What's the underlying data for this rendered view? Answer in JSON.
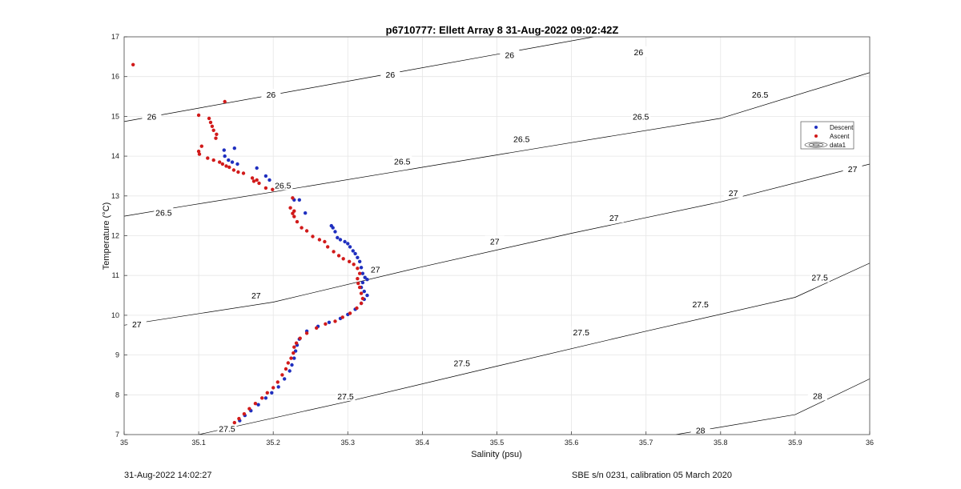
{
  "chart_data": {
    "type": "scatter",
    "title": "p6710777: Ellett Array 8 31-Aug-2022 09:02:42Z",
    "xlabel": "Salinity (psu)",
    "ylabel": "Temperature (°C)",
    "xlim": [
      35,
      36
    ],
    "ylim": [
      7,
      17
    ],
    "xticks": [
      "35",
      "35.1",
      "35.2",
      "35.3",
      "35.4",
      "35.5",
      "35.6",
      "35.7",
      "35.8",
      "35.9",
      "36"
    ],
    "yticks": [
      "7",
      "8",
      "9",
      "10",
      "11",
      "12",
      "13",
      "14",
      "15",
      "16",
      "17"
    ],
    "grid": true,
    "legend_position": "right",
    "legend": [
      "Descent",
      "Ascent",
      "data1"
    ],
    "colors": {
      "descent": "#1f2fbf",
      "ascent": "#d11a1a",
      "contour": "#000000"
    },
    "series": [
      {
        "name": "Descent",
        "color": "#1f2fbf",
        "points": [
          [
            35.134,
            14.15
          ],
          [
            35.148,
            14.2
          ],
          [
            35.135,
            14.0
          ],
          [
            35.14,
            13.9
          ],
          [
            35.145,
            13.85
          ],
          [
            35.152,
            13.8
          ],
          [
            35.178,
            13.7
          ],
          [
            35.19,
            13.5
          ],
          [
            35.195,
            13.4
          ],
          [
            35.228,
            12.9
          ],
          [
            35.235,
            12.9
          ],
          [
            35.243,
            12.57
          ],
          [
            35.278,
            12.25
          ],
          [
            35.28,
            12.2
          ],
          [
            35.283,
            12.1
          ],
          [
            35.286,
            11.95
          ],
          [
            35.29,
            11.9
          ],
          [
            35.296,
            11.85
          ],
          [
            35.3,
            11.8
          ],
          [
            35.303,
            11.72
          ],
          [
            35.307,
            11.62
          ],
          [
            35.31,
            11.55
          ],
          [
            35.313,
            11.45
          ],
          [
            35.316,
            11.35
          ],
          [
            35.318,
            11.2
          ],
          [
            35.32,
            11.05
          ],
          [
            35.323,
            10.95
          ],
          [
            35.326,
            10.9
          ],
          [
            35.32,
            10.82
          ],
          [
            35.318,
            10.7
          ],
          [
            35.322,
            10.6
          ],
          [
            35.326,
            10.5
          ],
          [
            35.322,
            10.4
          ],
          [
            35.318,
            10.3
          ],
          [
            35.31,
            10.15
          ],
          [
            35.3,
            10.02
          ],
          [
            35.29,
            9.92
          ],
          [
            35.275,
            9.82
          ],
          [
            35.26,
            9.72
          ],
          [
            35.245,
            9.6
          ],
          [
            35.235,
            9.4
          ],
          [
            35.232,
            9.25
          ],
          [
            35.23,
            9.1
          ],
          [
            35.228,
            8.92
          ],
          [
            35.225,
            8.75
          ],
          [
            35.222,
            8.6
          ],
          [
            35.215,
            8.4
          ],
          [
            35.207,
            8.2
          ],
          [
            35.198,
            8.05
          ],
          [
            35.19,
            7.92
          ],
          [
            35.18,
            7.75
          ],
          [
            35.17,
            7.6
          ],
          [
            35.162,
            7.48
          ],
          [
            35.155,
            7.35
          ]
        ]
      },
      {
        "name": "Ascent",
        "color": "#d11a1a",
        "points": [
          [
            35.012,
            16.3
          ],
          [
            35.135,
            15.37
          ],
          [
            35.1,
            15.03
          ],
          [
            35.114,
            14.95
          ],
          [
            35.116,
            14.85
          ],
          [
            35.118,
            14.75
          ],
          [
            35.12,
            14.65
          ],
          [
            35.124,
            14.55
          ],
          [
            35.123,
            14.45
          ],
          [
            35.104,
            14.25
          ],
          [
            35.1,
            14.12
          ],
          [
            35.101,
            14.05
          ],
          [
            35.112,
            13.95
          ],
          [
            35.12,
            13.9
          ],
          [
            35.128,
            13.85
          ],
          [
            35.132,
            13.8
          ],
          [
            35.137,
            13.75
          ],
          [
            35.141,
            13.72
          ],
          [
            35.147,
            13.65
          ],
          [
            35.153,
            13.6
          ],
          [
            35.16,
            13.57
          ],
          [
            35.172,
            13.45
          ],
          [
            35.178,
            13.4
          ],
          [
            35.174,
            13.37
          ],
          [
            35.181,
            13.32
          ],
          [
            35.19,
            13.2
          ],
          [
            35.199,
            13.16
          ],
          [
            35.226,
            12.95
          ],
          [
            35.223,
            12.7
          ],
          [
            35.228,
            12.62
          ],
          [
            35.226,
            12.56
          ],
          [
            35.228,
            12.48
          ],
          [
            35.232,
            12.35
          ],
          [
            35.238,
            12.2
          ],
          [
            35.245,
            12.12
          ],
          [
            35.253,
            11.98
          ],
          [
            35.262,
            11.9
          ],
          [
            35.269,
            11.85
          ],
          [
            35.273,
            11.72
          ],
          [
            35.281,
            11.6
          ],
          [
            35.288,
            11.5
          ],
          [
            35.294,
            11.42
          ],
          [
            35.302,
            11.35
          ],
          [
            35.308,
            11.28
          ],
          [
            35.313,
            11.18
          ],
          [
            35.316,
            11.05
          ],
          [
            35.313,
            10.92
          ],
          [
            35.314,
            10.8
          ],
          [
            35.316,
            10.7
          ],
          [
            35.318,
            10.55
          ],
          [
            35.32,
            10.42
          ],
          [
            35.318,
            10.3
          ],
          [
            35.312,
            10.18
          ],
          [
            35.303,
            10.05
          ],
          [
            35.293,
            9.95
          ],
          [
            35.283,
            9.85
          ],
          [
            35.27,
            9.78
          ],
          [
            35.258,
            9.68
          ],
          [
            35.245,
            9.55
          ],
          [
            35.236,
            9.42
          ],
          [
            35.231,
            9.3
          ],
          [
            35.228,
            9.2
          ],
          [
            35.227,
            9.05
          ],
          [
            35.224,
            8.92
          ],
          [
            35.22,
            8.8
          ],
          [
            35.217,
            8.65
          ],
          [
            35.212,
            8.5
          ],
          [
            35.206,
            8.32
          ],
          [
            35.2,
            8.18
          ],
          [
            35.192,
            8.05
          ],
          [
            35.185,
            7.92
          ],
          [
            35.176,
            7.78
          ],
          [
            35.168,
            7.65
          ],
          [
            35.161,
            7.52
          ],
          [
            35.154,
            7.4
          ],
          [
            35.148,
            7.3
          ]
        ]
      }
    ],
    "contours": [
      {
        "level": "26",
        "lines": [
          [
            [
              35.0,
              14.87
            ],
            [
              35.63,
              17.0
            ]
          ]
        ],
        "labels": [
          [
            35.037,
            15.0
          ],
          [
            35.197,
            15.55
          ],
          [
            35.357,
            16.05
          ],
          [
            35.517,
            16.55
          ],
          [
            35.69,
            16.62
          ]
        ]
      },
      {
        "level": "26.5",
        "lines": [
          [
            [
              35.0,
              12.49
            ],
            [
              35.08,
              12.74
            ],
            [
              35.2,
              13.1
            ],
            [
              35.4,
              13.72
            ],
            [
              35.6,
              14.34
            ],
            [
              35.8,
              14.95
            ],
            [
              36.0,
              16.1
            ]
          ]
        ],
        "labels": [
          [
            35.053,
            12.58
          ],
          [
            35.213,
            13.27
          ],
          [
            35.373,
            13.87
          ],
          [
            35.533,
            14.43
          ],
          [
            35.693,
            15.0
          ],
          [
            35.853,
            15.55
          ]
        ]
      },
      {
        "level": "27",
        "lines": [
          [
            [
              35.0,
              9.75
            ],
            [
              35.2,
              10.33
            ],
            [
              35.4,
              11.22
            ],
            [
              35.6,
              12.06
            ],
            [
              35.8,
              12.85
            ],
            [
              36.0,
              13.8
            ]
          ]
        ],
        "labels": [
          [
            35.017,
            9.78
          ],
          [
            35.177,
            10.5
          ],
          [
            35.337,
            11.15
          ],
          [
            35.497,
            11.86
          ],
          [
            35.657,
            12.45
          ],
          [
            35.817,
            13.08
          ],
          [
            35.977,
            13.68
          ]
        ]
      },
      {
        "level": "27.5",
        "lines": [
          [
            [
              35.1,
              7.0
            ],
            [
              35.3,
              7.83
            ],
            [
              35.5,
              8.72
            ],
            [
              35.7,
              9.6
            ],
            [
              35.9,
              10.45
            ],
            [
              36.0,
              11.31
            ]
          ]
        ],
        "labels": [
          [
            35.138,
            7.15
          ],
          [
            35.297,
            7.97
          ],
          [
            35.453,
            8.8
          ],
          [
            35.613,
            9.58
          ],
          [
            35.773,
            10.28
          ],
          [
            35.933,
            10.95
          ]
        ]
      },
      {
        "level": "28",
        "lines": [
          [
            [
              35.74,
              7.0
            ],
            [
              35.9,
              7.5
            ],
            [
              36.0,
              8.4
            ]
          ]
        ],
        "labels": [
          [
            35.773,
            7.11
          ],
          [
            35.93,
            7.98
          ]
        ]
      }
    ]
  },
  "footer": {
    "left": "31-Aug-2022 14:02:27",
    "right": "SBE s/n 0231, calibration 05 March 2020"
  }
}
